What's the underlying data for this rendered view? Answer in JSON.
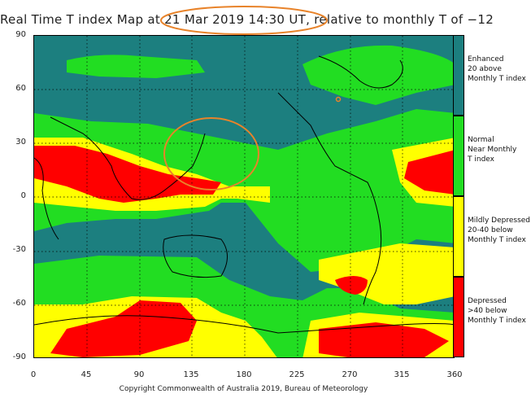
{
  "title": "Real Time T index Map at 21 Mar 2019 14:30 UT, relative to monthly T of −12",
  "copyright": "Copyright Commonwealth of Australia 2019, Bureau of Meteorology",
  "axes": {
    "y_ticks": [
      "90",
      "60",
      "30",
      "0",
      "-30",
      "-60",
      "-90"
    ],
    "x_ticks": [
      "0",
      "45",
      "90",
      "135",
      "180",
      "225",
      "270",
      "315",
      "360"
    ]
  },
  "legend": [
    {
      "color": "#1c7f7f",
      "lines": [
        "Enhanced",
        "20 above",
        "Monthly T index"
      ]
    },
    {
      "color": "#22dd22",
      "lines": [
        "Normal",
        "Near Monthly",
        "T index"
      ]
    },
    {
      "color": "#ffff00",
      "lines": [
        "Mildly Depressed",
        "20-40 below",
        "Monthly T index"
      ]
    },
    {
      "color": "#ff0000",
      "lines": [
        "Depressed",
        ">40 below",
        "Monthly T index"
      ]
    }
  ],
  "colors": {
    "enhanced": "#1c7f7f",
    "normal": "#22dd22",
    "mildly_depressed": "#ffff00",
    "depressed": "#ff0000",
    "annotation": "#e8832a",
    "gridline": "#000000"
  },
  "annotations": [
    "circle-around-timestamp",
    "circle-around-japan-region"
  ]
}
